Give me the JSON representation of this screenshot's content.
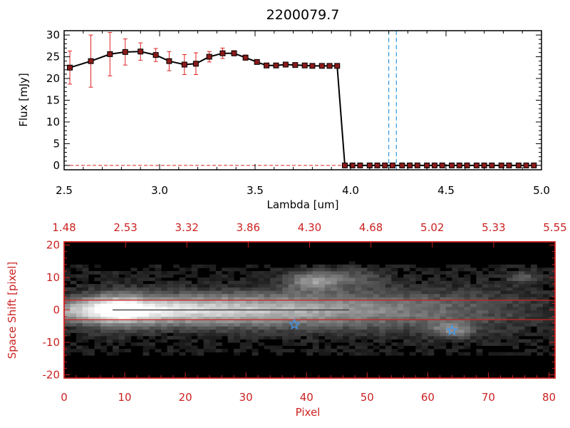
{
  "chart_data": [
    {
      "type": "line",
      "title": "2200079.7",
      "xlabel": "Lambda [um]",
      "ylabel": "Flux [mJy]",
      "xlim": [
        2.5,
        5.0
      ],
      "ylim": [
        -1,
        31
      ],
      "x_ticks": [
        "2.5",
        "3.0",
        "3.5",
        "4.0",
        "4.5",
        "5.0"
      ],
      "y_ticks": [
        "0",
        "5",
        "10",
        "15",
        "20",
        "25",
        "30"
      ],
      "series": [
        {
          "color": "#000000",
          "marker_color": "#8b1a1a",
          "error_color": "#dd2222",
          "x": [
            2.53,
            2.64,
            2.74,
            2.82,
            2.9,
            2.98,
            3.05,
            3.13,
            3.19,
            3.26,
            3.33,
            3.39,
            3.45,
            3.51,
            3.56,
            3.61,
            3.66,
            3.71,
            3.76,
            3.8,
            3.85,
            3.89,
            3.93,
            3.97,
            4.01,
            4.05,
            4.1,
            4.14,
            4.18,
            4.22,
            4.27,
            4.31,
            4.35,
            4.4,
            4.44,
            4.48,
            4.53,
            4.57,
            4.61,
            4.66,
            4.7,
            4.74,
            4.79,
            4.83,
            4.88,
            4.92,
            4.96
          ],
          "y": [
            22.5,
            24.0,
            25.6,
            26.1,
            26.2,
            25.4,
            24.0,
            23.2,
            23.4,
            25.0,
            25.8,
            25.8,
            24.8,
            23.8,
            23.0,
            23.0,
            23.2,
            23.1,
            23.0,
            22.9,
            22.9,
            22.9,
            22.9,
            0.0,
            0.0,
            0.0,
            0.0,
            0.0,
            0.0,
            0.0,
            0.0,
            0.0,
            0.0,
            0.0,
            0.0,
            0.0,
            0.0,
            0.0,
            0.0,
            0.0,
            0.0,
            0.0,
            0.0,
            0.0,
            0.0,
            0.0,
            0.0
          ],
          "yerr": [
            3.8,
            6.0,
            5.0,
            3.0,
            2.0,
            1.5,
            2.2,
            2.3,
            2.5,
            1.2,
            1.2,
            0.6,
            0.6,
            0.4,
            0.3,
            0.3,
            0.3,
            0.3,
            0.3,
            0.3,
            0.3,
            0.3,
            0.3,
            0.1,
            0.1,
            0.1,
            0.1,
            0.1,
            0.1,
            0.1,
            0.1,
            0.1,
            0.1,
            0.1,
            0.1,
            0.1,
            0.1,
            0.1,
            0.1,
            0.1,
            0.1,
            0.1,
            0.1,
            0.1,
            0.1,
            0.1,
            0.1
          ]
        }
      ],
      "vertical_lines": {
        "x": [
          4.2,
          4.24
        ],
        "color": "#3399dd",
        "style": "dashed"
      },
      "zero_line_color": "#dd2222"
    },
    {
      "type": "heatmap",
      "xlabel": "Pixel",
      "ylabel": "Space Shift [pixel]",
      "xlim": [
        0,
        81
      ],
      "ylim": [
        -21,
        21
      ],
      "x_ticks": [
        "0",
        "10",
        "20",
        "30",
        "40",
        "50",
        "60",
        "70",
        "80"
      ],
      "y_ticks": [
        "-20",
        "-10",
        "0",
        "10",
        "20"
      ],
      "top_axis_labels": [
        "1.48",
        "2.53",
        "3.32",
        "3.86",
        "4.30",
        "4.68",
        "5.02",
        "5.33",
        "5.55"
      ],
      "colormap": "grayscale",
      "frame_color": "#cc2222",
      "extraction_lines": {
        "y": [
          3,
          -3
        ],
        "color": "#cc2222"
      },
      "center_line_y": 0,
      "stars": [
        {
          "x": 38.0,
          "y": -4.5
        },
        {
          "x": 64.0,
          "y": -6.3
        }
      ],
      "star_color": "#4499ee"
    }
  ]
}
